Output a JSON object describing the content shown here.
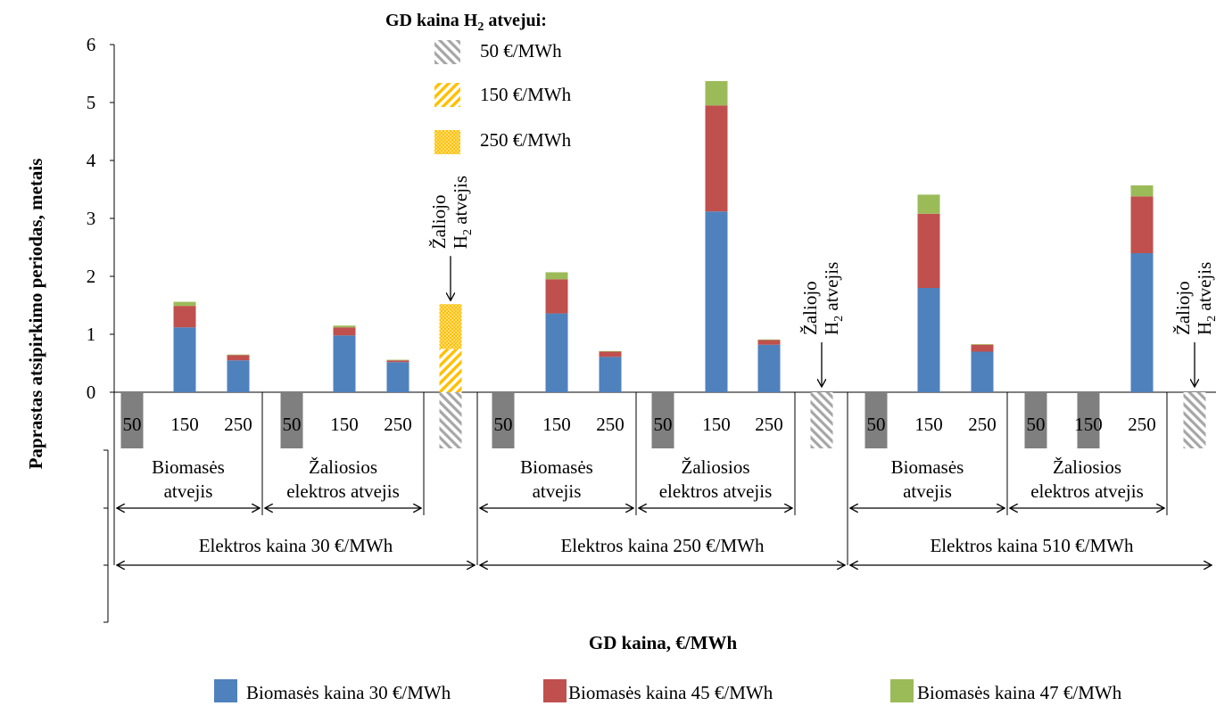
{
  "chart_data": {
    "type": "bar",
    "stacked": true,
    "ylabel": "Paprastas atsipirkimo periodas, metais",
    "xlabel": "GD kaina, €/MWh",
    "ylim": [
      0,
      6
    ],
    "yticks": [
      "0",
      "1",
      "2",
      "3",
      "4",
      "5",
      "6"
    ],
    "grid": false,
    "legend_position": "bottom",
    "colors": {
      "Biomasės kaina 30 €/MWh": "#4f81bd",
      "Biomasės kaina 45 €/MWh": "#c0504d",
      "Biomasės kaina 47 €/MWh": "#9bbb59",
      "negative": "#7f7f7f",
      "h2_50": "#a6a6a6",
      "h2_150_250": "#ffc000"
    },
    "series": [
      {
        "name": "Biomasės kaina 30 €/MWh"
      },
      {
        "name": "Biomasės kaina 45 €/MWh"
      },
      {
        "name": "Biomasės kaina 47 €/MWh"
      }
    ],
    "h2_legend": {
      "title": "GD kaina H",
      "title_sub": "2",
      "title_suffix": " atvejui:",
      "entries": [
        {
          "label": "50 €/MWh",
          "pattern": "diagonal-gray"
        },
        {
          "label": "150 €/MWh",
          "pattern": "diagonal-yellow"
        },
        {
          "label": "250 €/MWh",
          "pattern": "dots-yellow"
        }
      ]
    },
    "h2_annotation": {
      "line1": "Žaliojo",
      "line2_main": "H",
      "line2_sub": "2",
      "line2_suffix": " atvejis"
    },
    "groups": [
      {
        "price_label": "Elektros kaina 30 €/MWh",
        "subgroups": [
          {
            "label_line1": "Biomasės",
            "label_line2": "atvejis",
            "bars": [
              {
                "category": "50",
                "negative": true,
                "stack": []
              },
              {
                "category": "150",
                "stack": [
                  1.12,
                  0.37,
                  0.07
                ]
              },
              {
                "category": "250",
                "stack": [
                  0.55,
                  0.09,
                  0.01
                ]
              }
            ]
          },
          {
            "label_line1": "Žaliosios",
            "label_line2": "elektros atvejis",
            "bars": [
              {
                "category": "50",
                "negative": true,
                "stack": []
              },
              {
                "category": "150",
                "stack": [
                  0.98,
                  0.14,
                  0.03
                ]
              },
              {
                "category": "250",
                "stack": [
                  0.52,
                  0.03,
                  0.01
                ]
              }
            ]
          }
        ],
        "h2_bar": {
          "negative_part": true,
          "value_150": 0.75,
          "value_250": 0.77,
          "annotated": true
        }
      },
      {
        "price_label": "Elektros kaina 250 €/MWh",
        "subgroups": [
          {
            "label_line1": "Biomasės",
            "label_line2": "atvejis",
            "bars": [
              {
                "category": "50",
                "negative": true,
                "stack": []
              },
              {
                "category": "150",
                "stack": [
                  1.36,
                  0.59,
                  0.12
                ]
              },
              {
                "category": "250",
                "stack": [
                  0.61,
                  0.09,
                  0.01
                ]
              }
            ]
          },
          {
            "label_line1": "Žaliosios",
            "label_line2": "elektros atvejis",
            "bars": [
              {
                "category": "50",
                "negative": true,
                "stack": []
              },
              {
                "category": "150",
                "stack": [
                  3.12,
                  1.83,
                  0.42
                ]
              },
              {
                "category": "250",
                "stack": [
                  0.82,
                  0.08,
                  0.01
                ]
              }
            ]
          }
        ],
        "h2_bar": {
          "negative_part": true,
          "value_150": 0,
          "value_250": 0,
          "annotated": true
        }
      },
      {
        "price_label": "Elektros kaina 510 €/MWh",
        "subgroups": [
          {
            "label_line1": "Biomasės",
            "label_line2": "atvejis",
            "bars": [
              {
                "category": "50",
                "negative": true,
                "stack": []
              },
              {
                "category": "150",
                "stack": [
                  1.8,
                  1.28,
                  0.33
                ]
              },
              {
                "category": "250",
                "stack": [
                  0.7,
                  0.12,
                  0.01
                ]
              }
            ]
          },
          {
            "label_line1": "Žaliosios",
            "label_line2": "elektros atvejis",
            "bars": [
              {
                "category": "50",
                "negative": true,
                "stack": []
              },
              {
                "category": "150",
                "negative": true,
                "stack": []
              },
              {
                "category": "250",
                "stack": [
                  2.4,
                  0.98,
                  0.19
                ]
              }
            ]
          }
        ],
        "h2_bar": {
          "negative_part": true,
          "value_150": 0,
          "value_250": 0,
          "annotated": true
        }
      }
    ]
  }
}
